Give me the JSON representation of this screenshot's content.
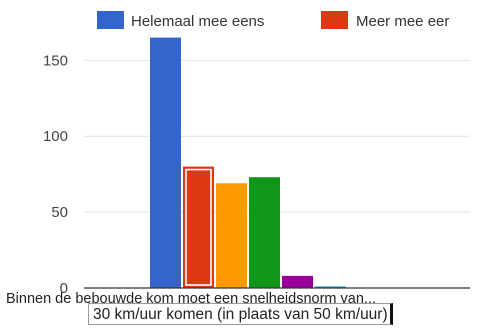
{
  "chart_data": {
    "type": "bar",
    "categories": [
      "Binnen de bebouwde kom moet een snelheidsnorm van..."
    ],
    "series": [
      {
        "name": "Helemaal mee eens",
        "values": [
          165
        ],
        "color": "#3366cc"
      },
      {
        "name": "Meer mee eens",
        "values": [
          80
        ],
        "color": "#dc3912",
        "highlighted": true
      },
      {
        "name": "",
        "values": [
          69
        ],
        "color": "#ff9900"
      },
      {
        "name": "",
        "values": [
          73
        ],
        "color": "#109618"
      },
      {
        "name": "",
        "values": [
          8
        ],
        "color": "#990099"
      },
      {
        "name": "",
        "values": [
          1
        ],
        "color": "#0099c6"
      }
    ],
    "y_ticks": [
      0,
      50,
      100,
      150
    ],
    "ylim": [
      0,
      170
    ],
    "grid": true,
    "legend": {
      "position": "top",
      "entries": [
        "Helemaal mee eens",
        "Meer mee eer"
      ]
    },
    "tooltip": "30 km/uur komen (in plaats van 50 km/uur)",
    "title": "",
    "xlabel": "",
    "ylabel": ""
  }
}
